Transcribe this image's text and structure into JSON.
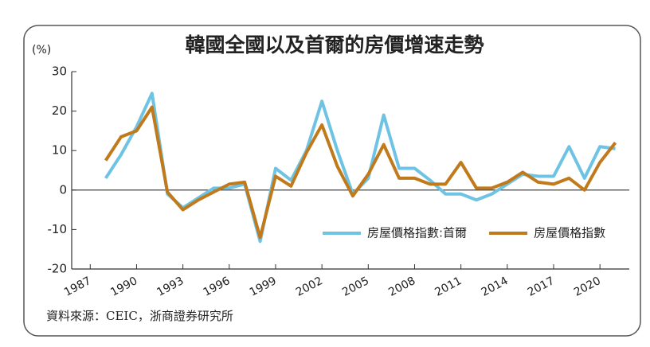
{
  "chart_data": {
    "type": "line",
    "title": "韓國全國以及首爾的房價增速走勢",
    "y_label": "(%)",
    "source": "資料來源：CEIC，浙商證券研究所",
    "x": [
      1988,
      1989,
      1990,
      1991,
      1992,
      1993,
      1994,
      1995,
      1996,
      1997,
      1998,
      1999,
      2000,
      2001,
      2002,
      2003,
      2004,
      2005,
      2006,
      2007,
      2008,
      2009,
      2010,
      2011,
      2012,
      2013,
      2014,
      2015,
      2016,
      2017,
      2018,
      2019,
      2020,
      2021
    ],
    "series": [
      {
        "name": "房屋價格指數:首爾",
        "color": "#6ec3e4",
        "values": [
          3,
          9,
          16,
          24.5,
          -1,
          -4.5,
          -2,
          0.5,
          0.5,
          1.5,
          -13,
          5.5,
          2.5,
          10,
          22.5,
          10,
          -1,
          3,
          19,
          5.5,
          5.5,
          2.5,
          -1,
          -1,
          -2.5,
          -1,
          1.5,
          4,
          3.5,
          3.5,
          11,
          3,
          11,
          10.5
        ]
      },
      {
        "name": "房屋價格指數",
        "color": "#c07a1c",
        "values": [
          7.5,
          13.5,
          15,
          21,
          -0.5,
          -5,
          -2.5,
          -0.5,
          1.5,
          2,
          -12,
          3.5,
          1,
          9.5,
          16.5,
          6,
          -1.5,
          4,
          11.5,
          3,
          3,
          1.5,
          1.5,
          7,
          0.5,
          0.5,
          2,
          4.5,
          2,
          1.5,
          3,
          0,
          7,
          12
        ]
      }
    ],
    "xlim": [
      1985.8,
      2021.9
    ],
    "xticks": [
      1987,
      1990,
      1993,
      1996,
      1999,
      2002,
      2005,
      2008,
      2011,
      2014,
      2017,
      2020
    ],
    "ylim": [
      -20,
      30
    ],
    "yticks": [
      -20,
      -10,
      0,
      10,
      20,
      30
    ],
    "legend": "lower right"
  }
}
